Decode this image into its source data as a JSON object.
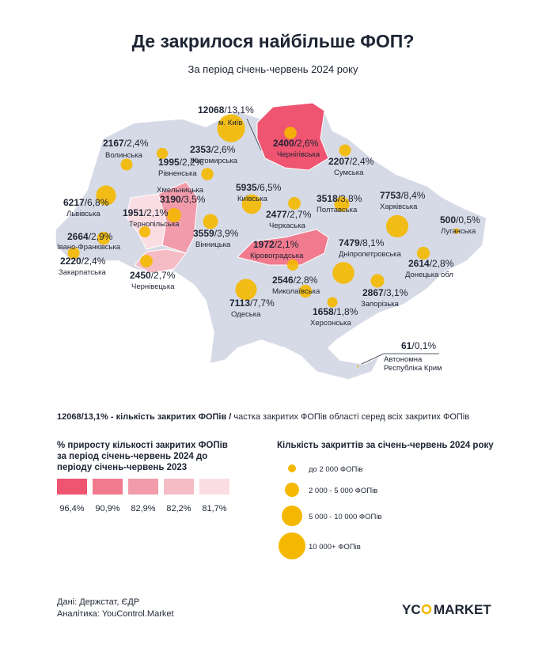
{
  "header": {
    "title": "Де закрилося найбільше ФОП?",
    "subtitle": "За період січень-червень 2024 року"
  },
  "regions": [
    {
      "count": 12068,
      "share": "/13,1%",
      "name": "м. Київ"
    },
    {
      "count": 2400,
      "share": "/2,6%",
      "name": "Чернігівська"
    },
    {
      "count": 2167,
      "share": "/2,4%",
      "name": "Волинська"
    },
    {
      "count": 1995,
      "share": "/2,2%",
      "name": "Рівненська"
    },
    {
      "count": 2353,
      "share": "/2,6%",
      "name": "Житомирська"
    },
    {
      "count": 2207,
      "share": "/2,4%",
      "name": "Сумська"
    },
    {
      "count": 6217,
      "share": "/6,8%",
      "name": "Львівська"
    },
    {
      "count": 3190,
      "share": "/3,5%",
      "name": "Хмельницька"
    },
    {
      "count": 1951,
      "share": "/2,1%",
      "name": "Тернопільська"
    },
    {
      "count": 5935,
      "share": "/6,5%",
      "name": "Київська"
    },
    {
      "count": 3518,
      "share": "/3,8%",
      "name": "Полтавська"
    },
    {
      "count": 7753,
      "share": "/8,4%",
      "name": "Харківська"
    },
    {
      "count": 500,
      "share": "/0,5%",
      "name": "Луганська"
    },
    {
      "count": 2477,
      "share": "/2,7%",
      "name": "Черкаська"
    },
    {
      "count": 3559,
      "share": "/3,9%",
      "name": "Вінницька"
    },
    {
      "count": 2664,
      "share": "/2,9%",
      "name": "Івано-Франківська"
    },
    {
      "count": 2220,
      "share": "/2,4%",
      "name": "Закарпатська"
    },
    {
      "count": 1972,
      "share": "/2,1%",
      "name": "Кіровоградська"
    },
    {
      "count": 7479,
      "share": "/8,1%",
      "name": "Дніпропетровська"
    },
    {
      "count": 2614,
      "share": "/2,8%",
      "name": "Донецька обл"
    },
    {
      "count": 2450,
      "share": "/2,7%",
      "name": "Чернівецька"
    },
    {
      "count": 2546,
      "share": "/2,8%",
      "name": "Миколаївська"
    },
    {
      "count": 2867,
      "share": "/3,1%",
      "name": "Запорізька"
    },
    {
      "count": 7113,
      "share": "/7,7%",
      "name": "Одеська"
    },
    {
      "count": 1658,
      "share": "/1,8%",
      "name": "Херсонська"
    },
    {
      "count": 61,
      "share": "/0,1%",
      "name": [
        "Автономна",
        "Республіка Крим"
      ]
    }
  ],
  "key": {
    "example": "12068/13,1% - ",
    "bold": "кількість закритих ФОПів /",
    "rest": " частка закритих ФОПів області серед всіх закритих ФОПів"
  },
  "growth_legend": {
    "title": [
      "% приросту кількості закритих ФОПів",
      "за період січень-червень 2024 до",
      "періоду січень-червень 2023"
    ],
    "items": [
      {
        "label": "96,4%",
        "color": "#ef5470"
      },
      {
        "label": "90,9%",
        "color": "#f27a8e"
      },
      {
        "label": "82,9%",
        "color": "#f29cab"
      },
      {
        "label": "82,2%",
        "color": "#f6bcc6"
      },
      {
        "label": "81,7%",
        "color": "#fadde3"
      }
    ]
  },
  "size_legend": {
    "title": "Кількість закриттів за січень-червень 2024 року",
    "items": [
      "до 2 000 ФОПів",
      "2 000 - 5 000 ФОПів",
      "5 000 - 10 000 ФОПів",
      "10 000+ ФОПів"
    ]
  },
  "footer": {
    "sources": [
      "Дані: Держстат, ЄДР",
      "Аналітика: YouControl.Market"
    ],
    "logo_left": "YC",
    "logo_right": "MARKET"
  }
}
